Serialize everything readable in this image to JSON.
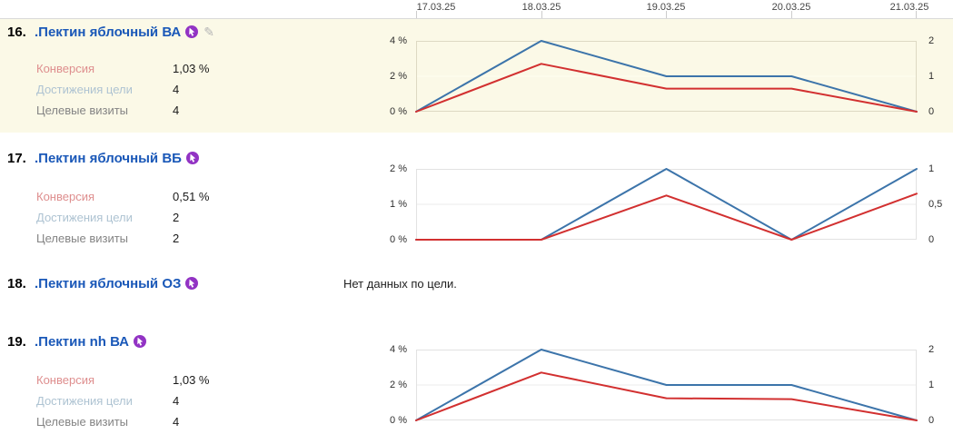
{
  "header": {
    "dates": [
      "17.03.25",
      "18.03.25",
      "19.03.25",
      "20.03.25",
      "21.03.25"
    ]
  },
  "icons": {
    "edit": "✎",
    "retargeting": "retargeting-goal-badge"
  },
  "colors": {
    "highlight_row_bg": "#fbf9e7",
    "goal_link": "#1a58b8",
    "line_blue": "#3c74aa",
    "line_red": "#d23030",
    "retargeting_purple": "#9233c4",
    "conversion_label": "#de8e8e",
    "goals_label": "#aec3d2",
    "visits_label": "#848484"
  },
  "rows": [
    {
      "index": "16.",
      "title": ".Пектин яблочный ВА",
      "highlighted": true,
      "metrics": {
        "conversion": {
          "label": "Конверсия",
          "value": "1,03 %"
        },
        "goals": {
          "label": "Достижения цели",
          "value": "4"
        },
        "visits": {
          "label": "Целевые визиты",
          "value": "4"
        }
      }
    },
    {
      "index": "17.",
      "title": ".Пектин яблочный ВБ",
      "highlighted": false,
      "metrics": {
        "conversion": {
          "label": "Конверсия",
          "value": "0,51 %"
        },
        "goals": {
          "label": "Достижения цели",
          "value": "2"
        },
        "visits": {
          "label": "Целевые визиты",
          "value": "2"
        }
      }
    },
    {
      "index": "18.",
      "title": ".Пектин яблочный ОЗ",
      "highlighted": false,
      "no_data": "Нет данных по цели."
    },
    {
      "index": "19.",
      "title": ".Пектин nh ВА",
      "highlighted": false,
      "metrics": {
        "conversion": {
          "label": "Конверсия",
          "value": "1,03 %"
        },
        "goals": {
          "label": "Достижения цели",
          "value": "4"
        },
        "visits": {
          "label": "Целевые визиты",
          "value": "4"
        }
      }
    }
  ],
  "chart_data": [
    {
      "type": "line",
      "title": "Цель 16 — динамика по дням",
      "x": [
        "17.03.25",
        "18.03.25",
        "19.03.25",
        "20.03.25",
        "21.03.25"
      ],
      "series": [
        {
          "name": "Достижения цели",
          "axis": "right",
          "color": "#3c74aa",
          "values": [
            0,
            2,
            1,
            1,
            0
          ]
        },
        {
          "name": "Конверсия",
          "axis": "left",
          "color": "#d23030",
          "values": [
            0,
            2.7,
            1.3,
            1.3,
            0
          ]
        }
      ],
      "left_axis": {
        "min": 0,
        "max": 4,
        "unit": "%",
        "ticks": [
          "4 %",
          "2 %",
          "0 %"
        ]
      },
      "right_axis": {
        "min": 0,
        "max": 2,
        "ticks": [
          "2",
          "1",
          "0"
        ]
      },
      "grid": true,
      "legend": "none"
    },
    {
      "type": "line",
      "title": "Цель 17 — динамика по дням",
      "x": [
        "17.03.25",
        "18.03.25",
        "19.03.25",
        "20.03.25",
        "21.03.25"
      ],
      "series": [
        {
          "name": "Достижения цели",
          "axis": "right",
          "color": "#3c74aa",
          "values": [
            0,
            0,
            1,
            0,
            1
          ]
        },
        {
          "name": "Конверсия",
          "axis": "left",
          "color": "#d23030",
          "values": [
            0,
            0,
            1.25,
            0,
            1.3
          ]
        }
      ],
      "left_axis": {
        "min": 0,
        "max": 2,
        "unit": "%",
        "ticks": [
          "2 %",
          "1 %",
          "0 %"
        ]
      },
      "right_axis": {
        "min": 0,
        "max": 1,
        "ticks": [
          "1",
          "0,5",
          "0"
        ]
      },
      "grid": true,
      "legend": "none"
    },
    {
      "type": "line",
      "title": "Цель 19 — динамика по дням",
      "x": [
        "17.03.25",
        "18.03.25",
        "19.03.25",
        "20.03.25",
        "21.03.25"
      ],
      "series": [
        {
          "name": "Достижения цели",
          "axis": "right",
          "color": "#3c74aa",
          "values": [
            0,
            2,
            1,
            1,
            0
          ]
        },
        {
          "name": "Конверсия",
          "axis": "left",
          "color": "#d23030",
          "values": [
            0,
            2.7,
            1.25,
            1.2,
            0
          ]
        }
      ],
      "left_axis": {
        "min": 0,
        "max": 4,
        "unit": "%",
        "ticks": [
          "4 %",
          "2 %",
          "0 %"
        ]
      },
      "right_axis": {
        "min": 0,
        "max": 2,
        "ticks": [
          "2",
          "1",
          "0"
        ]
      },
      "grid": true,
      "legend": "none"
    }
  ]
}
